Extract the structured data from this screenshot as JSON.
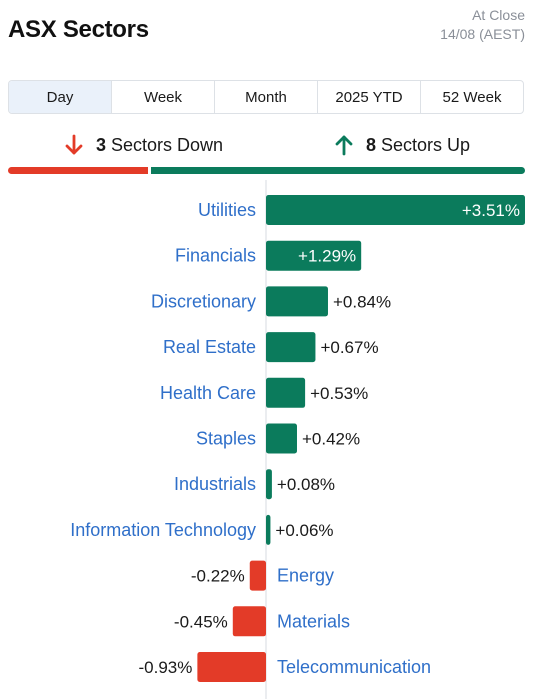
{
  "header": {
    "title": "ASX Sectors",
    "status": "At Close",
    "datetime": "14/08 (AEST)"
  },
  "tabs": [
    {
      "label": "Day",
      "active": true
    },
    {
      "label": "Week",
      "active": false
    },
    {
      "label": "Month",
      "active": false
    },
    {
      "label": "2025 YTD",
      "active": false
    },
    {
      "label": "52 Week",
      "active": false
    }
  ],
  "summary": {
    "down": {
      "count": "3",
      "label": "Sectors Down",
      "icon": "arrow-down-icon"
    },
    "up": {
      "count": "8",
      "label": "Sectors Up",
      "icon": "arrow-up-icon"
    }
  },
  "colors": {
    "up": "#0b7b5c",
    "down": "#e33b28",
    "label": "#2f6fc9"
  },
  "chart_data": {
    "type": "bar",
    "orientation": "horizontal",
    "unit": "%",
    "categories": [
      "Utilities",
      "Financials",
      "Discretionary",
      "Real Estate",
      "Health Care",
      "Staples",
      "Industrials",
      "Information Technology",
      "Energy",
      "Materials",
      "Telecommunication"
    ],
    "values": [
      3.51,
      1.29,
      0.84,
      0.67,
      0.53,
      0.42,
      0.08,
      0.06,
      -0.22,
      -0.45,
      -0.93
    ],
    "labels": [
      "+3.51%",
      "+1.29%",
      "+0.84%",
      "+0.67%",
      "+0.53%",
      "+0.42%",
      "+0.08%",
      "+0.06%",
      "-0.22%",
      "-0.45%",
      "-0.93%"
    ]
  }
}
